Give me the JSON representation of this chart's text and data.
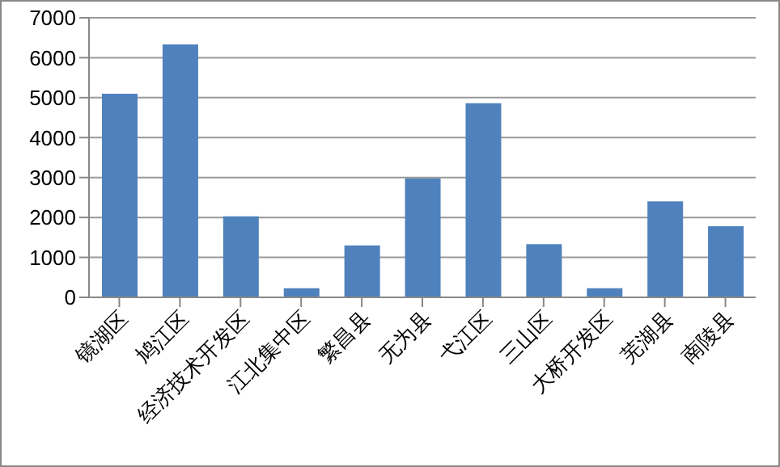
{
  "chart_data": {
    "type": "bar",
    "categories": [
      "镜湖区",
      "鸠江区",
      "经济技术开发区",
      "江北集中区",
      "繁昌县",
      "无为县",
      "弋江区",
      "三山区",
      "大桥开发区",
      "芜湖县",
      "南陵县"
    ],
    "values": [
      5100,
      6330,
      2030,
      230,
      1300,
      2980,
      4860,
      1330,
      230,
      2400,
      1780
    ],
    "color": "#4f81bd",
    "ylim": [
      0,
      7000
    ],
    "yticks": [
      0,
      1000,
      2000,
      3000,
      4000,
      5000,
      6000,
      7000
    ],
    "grid": "y"
  }
}
